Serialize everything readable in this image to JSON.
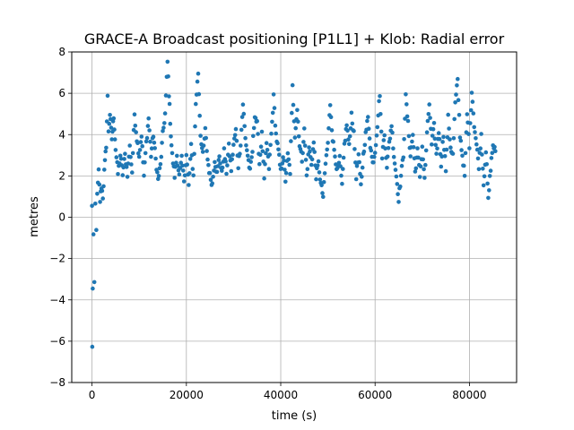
{
  "chart_data": {
    "type": "scatter",
    "title": "GRACE-A Broadcast positioning [P1L1] + Klob: Radial error",
    "xlabel": "time (s)",
    "ylabel": "metres",
    "xlim": [
      -4300,
      90000
    ],
    "ylim": [
      -8,
      8
    ],
    "xticks": [
      0,
      20000,
      40000,
      60000,
      80000
    ],
    "yticks": [
      -8,
      -6,
      -4,
      -2,
      0,
      2,
      4,
      6,
      8
    ],
    "grid": true,
    "marker_color": "#1f77b4",
    "x_step": 150,
    "series": [
      {
        "name": "",
        "keyframes": [
          [
            0,
            0.5
          ],
          [
            60,
            -6.2
          ],
          [
            150,
            -3.5
          ],
          [
            300,
            -1
          ],
          [
            500,
            -3.2
          ],
          [
            700,
            0.6
          ],
          [
            900,
            -0.5
          ],
          [
            1100,
            1.0
          ],
          [
            1400,
            2.2
          ],
          [
            1700,
            0.8
          ],
          [
            2000,
            1.5
          ],
          [
            2300,
            1.0
          ],
          [
            2600,
            2.2
          ],
          [
            3000,
            3.5
          ],
          [
            3300,
            5.8
          ],
          [
            3500,
            4.2
          ],
          [
            3800,
            5.0
          ],
          [
            4200,
            3.8
          ],
          [
            4600,
            4.9
          ],
          [
            5000,
            3.3
          ],
          [
            5500,
            2.1
          ],
          [
            6000,
            3.0
          ],
          [
            6500,
            2.1
          ],
          [
            7000,
            3.0
          ],
          [
            7500,
            2.1
          ],
          [
            8000,
            3.4
          ],
          [
            8500,
            2.2
          ],
          [
            9000,
            5.0
          ],
          [
            9500,
            3.8
          ],
          [
            10000,
            3.0
          ],
          [
            10500,
            4.0
          ],
          [
            11000,
            2.0
          ],
          [
            11500,
            3.6
          ],
          [
            12000,
            4.8
          ],
          [
            12500,
            3.0
          ],
          [
            13000,
            4.0
          ],
          [
            13500,
            2.8
          ],
          [
            14000,
            1.8
          ],
          [
            14500,
            2.5
          ],
          [
            15000,
            4.0
          ],
          [
            15500,
            5.0
          ],
          [
            16000,
            7.5
          ],
          [
            16300,
            6.0
          ],
          [
            16700,
            4.0
          ],
          [
            17000,
            3.0
          ],
          [
            17500,
            2.0
          ],
          [
            18000,
            3.0
          ],
          [
            18500,
            2.0
          ],
          [
            19000,
            2.8
          ],
          [
            19500,
            1.8
          ],
          [
            20000,
            3.0
          ],
          [
            20500,
            1.5
          ],
          [
            21000,
            3.4
          ],
          [
            21500,
            2.0
          ],
          [
            22000,
            5.5
          ],
          [
            22500,
            7.0
          ],
          [
            23000,
            4.0
          ],
          [
            23500,
            3.0
          ],
          [
            24000,
            4.2
          ],
          [
            24500,
            2.8
          ],
          [
            25000,
            2.0
          ],
          [
            25500,
            1.6
          ],
          [
            26000,
            2.8
          ],
          [
            26500,
            2.1
          ],
          [
            27000,
            3.0
          ],
          [
            27500,
            2.1
          ],
          [
            28000,
            3.2
          ],
          [
            28500,
            2.2
          ],
          [
            29000,
            3.4
          ],
          [
            29500,
            2.3
          ],
          [
            30000,
            3.5
          ],
          [
            30500,
            4.2
          ],
          [
            31000,
            2.5
          ],
          [
            31500,
            3.6
          ],
          [
            32000,
            5.5
          ],
          [
            32500,
            3.8
          ],
          [
            33000,
            3.0
          ],
          [
            33500,
            2.2
          ],
          [
            34000,
            3.2
          ],
          [
            34500,
            5.0
          ],
          [
            35000,
            4.5
          ],
          [
            35500,
            2.6
          ],
          [
            36000,
            4.0
          ],
          [
            36500,
            1.8
          ],
          [
            37000,
            3.6
          ],
          [
            37500,
            2.4
          ],
          [
            38000,
            4.0
          ],
          [
            38500,
            5.8
          ],
          [
            39000,
            4.0
          ],
          [
            39500,
            3.2
          ],
          [
            40000,
            2.2
          ],
          [
            40500,
            3.0
          ],
          [
            41000,
            1.8
          ],
          [
            41500,
            3.0
          ],
          [
            42000,
            2.2
          ],
          [
            42500,
            6.3
          ],
          [
            43000,
            4.0
          ],
          [
            43500,
            5.2
          ],
          [
            44000,
            3.5
          ],
          [
            44500,
            2.8
          ],
          [
            45000,
            4.2
          ],
          [
            45500,
            2.0
          ],
          [
            46000,
            3.4
          ],
          [
            46500,
            2.6
          ],
          [
            47000,
            3.6
          ],
          [
            47500,
            2.0
          ],
          [
            48000,
            2.6
          ],
          [
            48500,
            1.6
          ],
          [
            49000,
            1.0
          ],
          [
            49500,
            2.6
          ],
          [
            50000,
            3.6
          ],
          [
            50500,
            5.5
          ],
          [
            51000,
            3.8
          ],
          [
            51500,
            3.0
          ],
          [
            52000,
            2.2
          ],
          [
            52500,
            2.8
          ],
          [
            53000,
            1.5
          ],
          [
            53500,
            3.5
          ],
          [
            54000,
            4.5
          ],
          [
            54500,
            3.4
          ],
          [
            55000,
            5.0
          ],
          [
            55500,
            4.0
          ],
          [
            56000,
            2.0
          ],
          [
            56500,
            3.0
          ],
          [
            57000,
            1.5
          ],
          [
            57500,
            3.0
          ],
          [
            58000,
            4.0
          ],
          [
            58500,
            4.8
          ],
          [
            59000,
            3.5
          ],
          [
            59500,
            2.6
          ],
          [
            60000,
            3.2
          ],
          [
            60500,
            4.5
          ],
          [
            61000,
            6.0
          ],
          [
            61500,
            3.0
          ],
          [
            62000,
            4.0
          ],
          [
            62500,
            2.5
          ],
          [
            63000,
            3.6
          ],
          [
            63500,
            4.5
          ],
          [
            64000,
            3.0
          ],
          [
            64500,
            2.0
          ],
          [
            65000,
            0.9
          ],
          [
            65500,
            2.0
          ],
          [
            66000,
            3.0
          ],
          [
            66500,
            5.8
          ],
          [
            67000,
            4.5
          ],
          [
            67500,
            3.0
          ],
          [
            68000,
            4.0
          ],
          [
            68500,
            2.2
          ],
          [
            69000,
            3.2
          ],
          [
            69500,
            2.0
          ],
          [
            70000,
            3.4
          ],
          [
            70500,
            1.8
          ],
          [
            71000,
            4.0
          ],
          [
            71500,
            5.5
          ],
          [
            72000,
            3.5
          ],
          [
            72500,
            4.4
          ],
          [
            73000,
            3.0
          ],
          [
            73500,
            4.2
          ],
          [
            74000,
            2.6
          ],
          [
            74500,
            4.0
          ],
          [
            75000,
            2.3
          ],
          [
            75500,
            4.8
          ],
          [
            76000,
            3.4
          ],
          [
            76500,
            3.0
          ],
          [
            77000,
            5.5
          ],
          [
            77500,
            6.6
          ],
          [
            78000,
            4.0
          ],
          [
            78500,
            3.0
          ],
          [
            79000,
            2.0
          ],
          [
            79500,
            5.0
          ],
          [
            80000,
            3.5
          ],
          [
            80500,
            6.2
          ],
          [
            81000,
            4.5
          ],
          [
            81500,
            3.5
          ],
          [
            82000,
            2.5
          ],
          [
            82500,
            4.0
          ],
          [
            83000,
            1.6
          ],
          [
            83500,
            3.2
          ],
          [
            84000,
            0.8
          ],
          [
            84500,
            2.4
          ],
          [
            85000,
            3.5
          ],
          [
            85500,
            3.2
          ]
        ]
      }
    ]
  }
}
